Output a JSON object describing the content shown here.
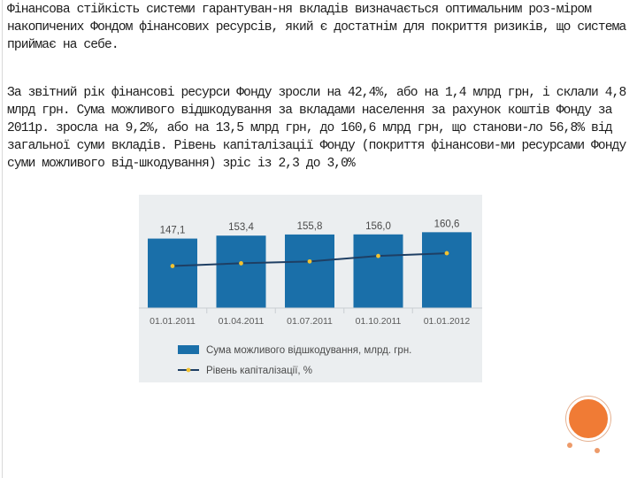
{
  "slide": {
    "paragraph_1": "Фінансова стійкість системи гарантуван-ня вкладів визначається оптимальним роз-міром накопичених Фондом фінансових ресурсів, який є достатнім для покриття ризиків, що система приймає на себе.",
    "paragraph_2": "За звітний рік фінансові ресурси Фонду зросли на 42,4%, або на 1,4 млрд грн, і склали 4,8 млрд грн. Сума можливого відшкодування за вкладами населення за рахунок коштів Фонду за 2011р. зросла на 9,2%, або на 13,5 млрд грн, до 160,6 млрд грн, що станови-ло 56,8% від загальної суми вкладів. Рівень капіталізації Фонду (покриття фінансови-ми ресурсами Фонду суми можливого від-шкодування) зріс із 2,3 до 3,0%"
  },
  "colors": {
    "bar": "#1a6fa9",
    "line": "#1e3f64",
    "marker": "#f2c230",
    "panel": "#ebeef0",
    "accent_circle": "#f07b35"
  },
  "chart_data": {
    "type": "bar",
    "categories": [
      "01.01.2011",
      "01.04.2011",
      "01.07.2011",
      "01.10.2011",
      "01.01.2012"
    ],
    "series": [
      {
        "name": "Сума можливого відшкодування, млрд. грн.",
        "type": "bar",
        "values": [
          147.1,
          153.4,
          155.8,
          156.0,
          160.6
        ],
        "labels": [
          "147,1",
          "153,4",
          "155,8",
          "156,0",
          "160,6"
        ]
      },
      {
        "name": "Рівень капіталізації, %",
        "type": "line",
        "values": [
          2.3,
          2.45,
          2.55,
          2.85,
          3.0
        ]
      }
    ],
    "legend_position": "bottom-left",
    "grid": false
  }
}
